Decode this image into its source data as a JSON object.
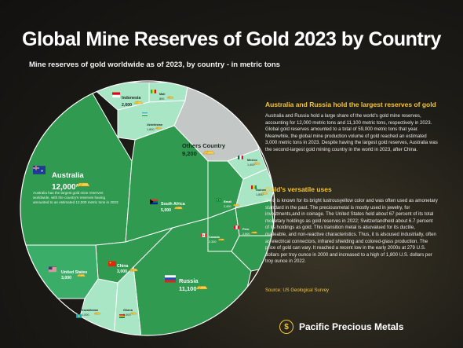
{
  "header": {
    "title": "Global Mine Reserves of Gold 2023 by Country",
    "subtitle": "Mine reserves of gold worldwide as of 2023, by country - in metric tons"
  },
  "chart_data": {
    "type": "voronoi-treemap",
    "title": "Global Mine Reserves of Gold 2023 by Country",
    "subtitle": "Mine reserves of gold worldwide as of 2023, by country - in metric tons",
    "unit": "metric tons",
    "categories": [
      "Australia",
      "Russia",
      "Others Country",
      "South Africa",
      "United States",
      "China",
      "Indonesia",
      "Brazil",
      "Peru",
      "Canada",
      "Uzbekistan",
      "Ghana",
      "Mexico",
      "Kazakhstan",
      "Mali",
      "Guinea"
    ],
    "values": [
      12000,
      11100,
      9200,
      5000,
      3000,
      3000,
      2600,
      2400,
      2500,
      2300,
      1800,
      1000,
      1400,
      1000,
      800,
      1800
    ],
    "series": [
      {
        "name": "Australia",
        "value": 12000,
        "label": "12,000*",
        "color": "#2f9a50"
      },
      {
        "name": "Russia",
        "value": 11100,
        "label": "11,100",
        "color": "#2f9a50"
      },
      {
        "name": "Others Country",
        "value": 9200,
        "label": "9,200",
        "color": "#c3c8c6"
      },
      {
        "name": "South Africa",
        "value": 5000,
        "label": "5,000",
        "color": "#2f9a50"
      },
      {
        "name": "United States",
        "value": 3000,
        "label": "3,000",
        "color": "#3aad68"
      },
      {
        "name": "China",
        "value": 3000,
        "label": "3,000",
        "color": "#2f9a50"
      },
      {
        "name": "Indonesia",
        "value": 2600,
        "label": "2,600",
        "color": "#a9e6c6"
      },
      {
        "name": "Brazil",
        "value": 2400,
        "label": "2,400",
        "color": "#2f9a50"
      },
      {
        "name": "Peru",
        "value": 2500,
        "label": "2,500",
        "color": "#2f9a50"
      },
      {
        "name": "Canada",
        "value": 2300,
        "label": "2,300",
        "color": "#2f9a50"
      },
      {
        "name": "Uzbekistan",
        "value": 1800,
        "label": "1,800",
        "color": "#a9e6c6"
      },
      {
        "name": "Ghana",
        "value": 1000,
        "label": "1,000",
        "color": "#a9e6c6"
      },
      {
        "name": "Mexico",
        "value": 1400,
        "label": "1,400",
        "color": "#a9e6c6"
      },
      {
        "name": "Kazakhstan",
        "value": 1000,
        "label": "1,000",
        "color": "#a9e6c6"
      },
      {
        "name": "Mali",
        "value": 800,
        "label": "800",
        "color": "#a9e6c6"
      },
      {
        "name": "Guinea",
        "value": 1800,
        "label": "1,800",
        "color": "#a9e6c6"
      }
    ],
    "annotation": "Australia has the largest gold mine reserves worldwide, with the country's reserves having amounted to an estimated 12,000 metric tons in 2023",
    "source": "Source: US Geological Survey"
  },
  "panel1": {
    "heading": "Australia and Russia hold the largest reserves of gold",
    "body": "Australia and Russia hold a large share of the world's gold mine reserves, accounting for 12,000 metric tons and 11,100 metric tons, respectively in 2023. Global gold reserves amounted to a total of 59,000 metric tons that year. Meanwhile, the global mine production volume of gold reached an estimated 3,000 metric tons in 2023. Despite having the largest gold reserves, Australia was the second-largest gold mining country in the world in 2023, after China."
  },
  "panel2": {
    "heading": "Gold's versatile uses",
    "body": "Gold is known for its bright lustrousyellow color and was often used as amonetary standard in the past. The preciousmetal is mostly used in jewelry, for investments,and in coinage. The United States held about 67 percent of its total monetary holdings as gold reserves in 2022; Switzerlandheld about 6.7 percent of its holdings as gold. This transition metal is alsovalued for its ductile, malleable, and non-reactive characteristics. Thus, it is alsoused industrially, often as electrical connectors, infrared shielding and colored-glass production. The price of gold can vary. It reached a recent low in the early 2000s at 279 U.S. dollars per troy ounce in 2000 and increased to a high of 1,800 U.S. dollars per troy ounce in 2022."
  },
  "brand": {
    "name": "Pacific Precious Metals",
    "icon": "dollar-coin-icon",
    "icon_glyph": "$"
  },
  "colors": {
    "dark_green": "#2f9a50",
    "mid_green": "#3aad68",
    "light_green": "#a9e6c6",
    "grey": "#c3c8c6",
    "gold": "#f5c534",
    "background": "#1e1c17"
  }
}
